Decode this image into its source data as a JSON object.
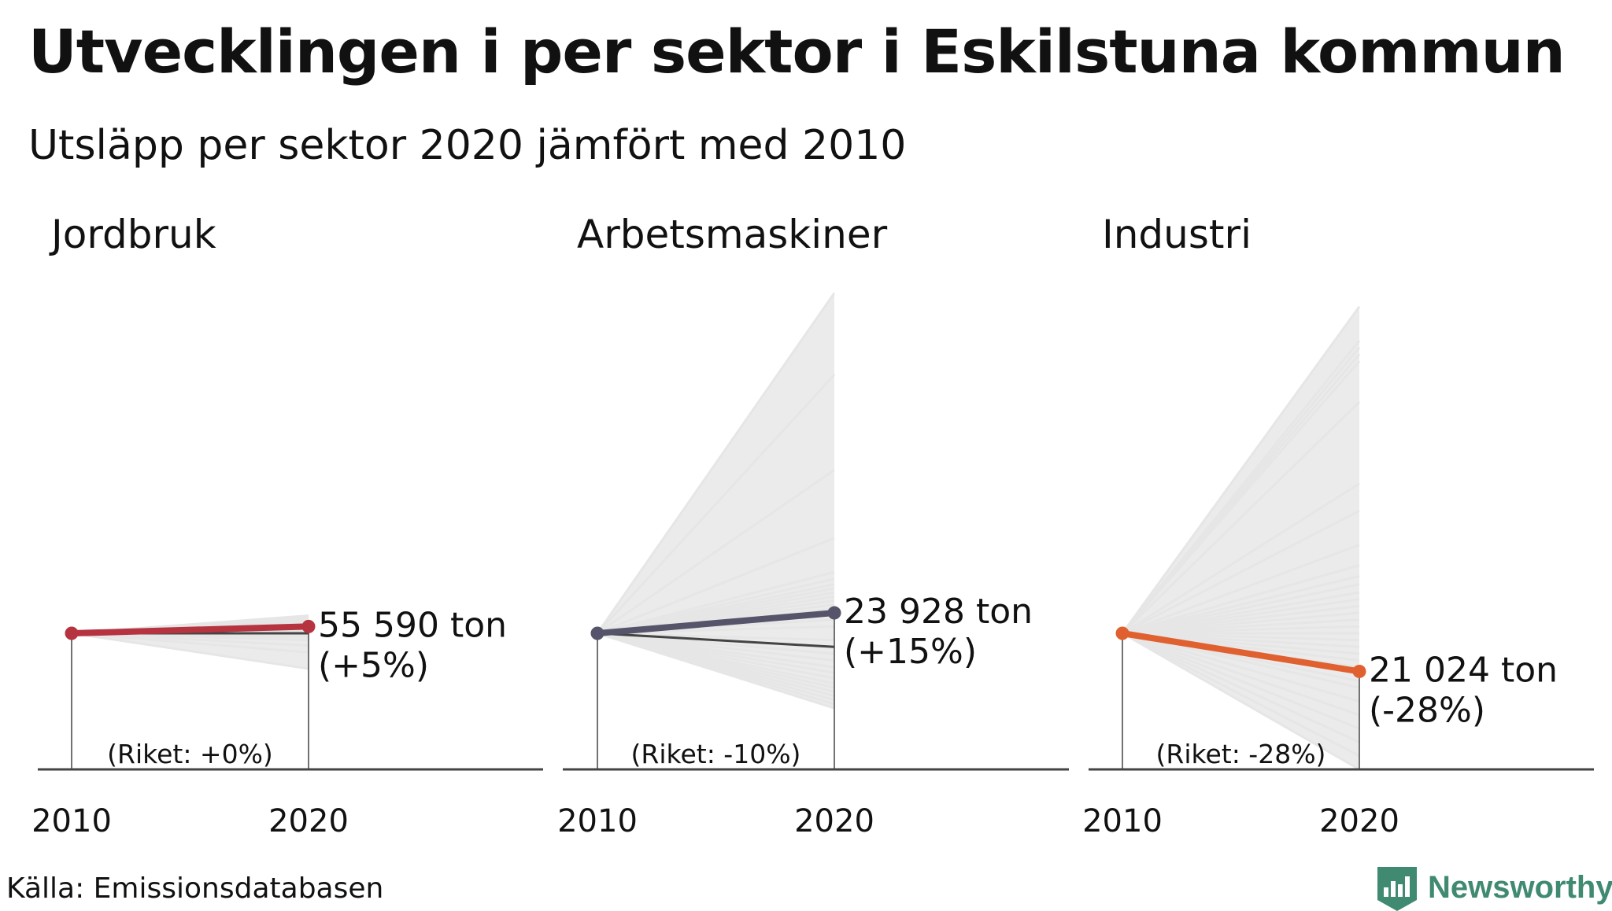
{
  "title": "Utvecklingen i per sektor i Eskilstuna kommun",
  "subtitle": "Utsläpp per sektor 2020 jämfört med 2010",
  "source": "Källa: Emissionsdatabasen",
  "brand": {
    "name": "Newsworthy",
    "color": "#3f8a70",
    "icon": "bar-chart-logo-icon"
  },
  "colors": {
    "context_lines": "#e6e6e6",
    "range_fill": "#ebebeb",
    "axis": "#444444",
    "national_line": "#444444"
  },
  "chart_data": [
    {
      "type": "line",
      "title": "Jordbruk",
      "x": [
        "2010",
        "2020"
      ],
      "ylim": [
        0,
        400
      ],
      "highlight": {
        "name": "Eskilstuna",
        "values": [
          100,
          105
        ],
        "color": "#b5343f"
      },
      "label_value": "55 590 ton",
      "label_change": "(+5%)",
      "national": {
        "values": [
          100,
          100
        ],
        "label": "(Riket: +0%)"
      },
      "other_municipalities": [
        [
          100,
          74
        ],
        [
          100,
          86
        ],
        [
          100,
          91
        ],
        [
          100,
          95
        ],
        [
          100,
          97
        ],
        [
          100,
          98
        ],
        [
          100,
          99
        ],
        [
          100,
          101
        ],
        [
          100,
          102
        ],
        [
          100,
          103
        ],
        [
          100,
          104
        ],
        [
          100,
          106
        ],
        [
          100,
          107
        ],
        [
          100,
          108
        ],
        [
          100,
          109
        ],
        [
          100,
          110
        ],
        [
          100,
          111
        ],
        [
          100,
          112
        ],
        [
          100,
          113
        ]
      ]
    },
    {
      "type": "line",
      "title": "Arbetsmaskiner",
      "x": [
        "2010",
        "2020"
      ],
      "ylim": [
        0,
        400
      ],
      "highlight": {
        "name": "Eskilstuna",
        "values": [
          100,
          115
        ],
        "color": "#55546a"
      },
      "label_value": "23 928 ton",
      "label_change": "(+15%)",
      "national": {
        "values": [
          100,
          90
        ],
        "label": "(Riket: -10%)"
      },
      "other_municipalities": [
        [
          100,
          45
        ],
        [
          100,
          48
        ],
        [
          100,
          51
        ],
        [
          100,
          54
        ],
        [
          100,
          57
        ],
        [
          100,
          60
        ],
        [
          100,
          63
        ],
        [
          100,
          67
        ],
        [
          100,
          71
        ],
        [
          100,
          75
        ],
        [
          100,
          80
        ],
        [
          100,
          85
        ],
        [
          100,
          95
        ],
        [
          100,
          105
        ],
        [
          100,
          110
        ],
        [
          100,
          118
        ],
        [
          100,
          121
        ],
        [
          100,
          124
        ],
        [
          100,
          127
        ],
        [
          100,
          130
        ],
        [
          100,
          133
        ],
        [
          100,
          136
        ],
        [
          100,
          140
        ],
        [
          100,
          145
        ],
        [
          100,
          170
        ],
        [
          100,
          220
        ],
        [
          100,
          290
        ],
        [
          100,
          350
        ]
      ]
    },
    {
      "type": "line",
      "title": "Industri",
      "x": [
        "2010",
        "2020"
      ],
      "ylim": [
        0,
        400
      ],
      "highlight": {
        "name": "Eskilstuna",
        "values": [
          100,
          72
        ],
        "color": "#e0612f"
      },
      "label_value": "21 024 ton",
      "label_change": "(-28%)",
      "national": {
        "values": [
          100,
          72
        ],
        "label": "(Riket: -28%)"
      },
      "other_municipalities": [
        [
          100,
          0
        ],
        [
          100,
          10
        ],
        [
          100,
          20
        ],
        [
          100,
          30
        ],
        [
          100,
          40
        ],
        [
          100,
          50
        ],
        [
          100,
          60
        ],
        [
          100,
          65
        ],
        [
          100,
          70
        ],
        [
          100,
          75
        ],
        [
          100,
          80
        ],
        [
          100,
          85
        ],
        [
          100,
          90
        ],
        [
          100,
          95
        ],
        [
          100,
          100
        ],
        [
          100,
          105
        ],
        [
          100,
          110
        ],
        [
          100,
          115
        ],
        [
          100,
          120
        ],
        [
          100,
          125
        ],
        [
          100,
          130
        ],
        [
          100,
          136
        ],
        [
          100,
          142
        ],
        [
          100,
          150
        ],
        [
          100,
          165
        ],
        [
          100,
          190
        ],
        [
          100,
          210
        ],
        [
          100,
          270
        ],
        [
          100,
          300
        ],
        [
          100,
          305
        ],
        [
          100,
          310
        ],
        [
          100,
          315
        ],
        [
          100,
          340
        ]
      ]
    }
  ]
}
